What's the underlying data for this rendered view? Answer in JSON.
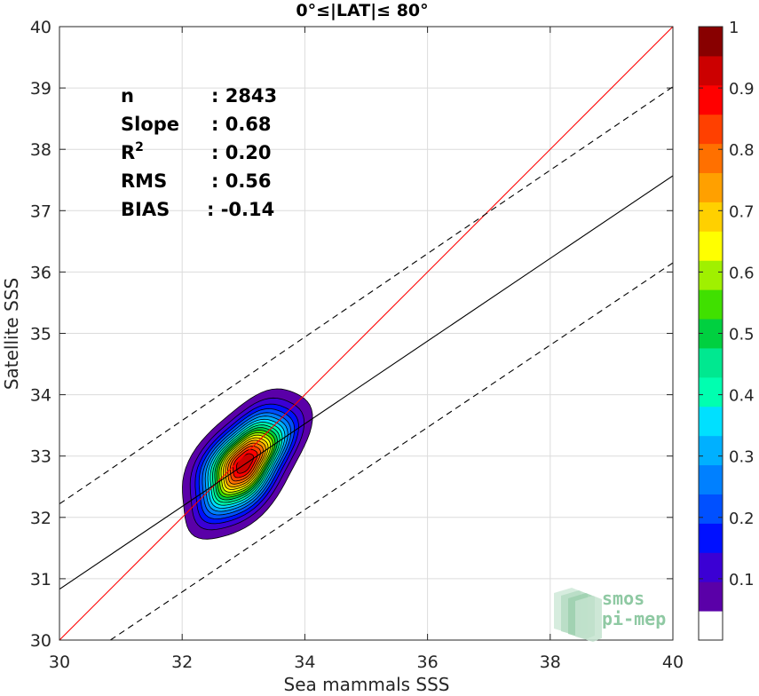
{
  "chart_data": {
    "type": "scatter",
    "title": "0°≤|LAT|≤ 80°",
    "xlabel": "Sea mammals SSS",
    "ylabel": "Satellite SSS",
    "xlim": [
      30,
      40
    ],
    "ylim": [
      30,
      40
    ],
    "xticks": [
      "30",
      "32",
      "34",
      "36",
      "38",
      "40"
    ],
    "yticks": [
      "30",
      "31",
      "32",
      "33",
      "34",
      "35",
      "36",
      "37",
      "38",
      "39",
      "40"
    ],
    "grid": true,
    "stats": [
      {
        "label": "n",
        "value": ": 2843"
      },
      {
        "label": "Slope",
        "value": ": 0.68"
      },
      {
        "label": "R",
        "sup": "2",
        "value": ": 0.20"
      },
      {
        "label": "RMS",
        "value": ": 0.56"
      },
      {
        "label": "BIAS",
        "value": ": -0.14"
      }
    ],
    "lines": [
      {
        "kind": "identity",
        "color": "#ff0000",
        "x": [
          30,
          40
        ],
        "y": [
          30,
          40
        ]
      },
      {
        "kind": "regression",
        "color": "#000000",
        "x": [
          30,
          40
        ],
        "y": [
          30.83,
          37.57
        ]
      },
      {
        "kind": "upper-bound",
        "color": "#000000",
        "dash": true,
        "x": [
          30,
          40
        ],
        "y": [
          32.22,
          39.02
        ]
      },
      {
        "kind": "lower-bound",
        "color": "#000000",
        "dash": true,
        "x": [
          30.83,
          40
        ],
        "y": [
          30,
          36.15
        ]
      }
    ],
    "density": {
      "center": [
        33.02,
        32.88
      ],
      "sigma": [
        0.43,
        0.5
      ],
      "rho": 0.55,
      "levels": [
        0.05,
        0.1,
        0.15,
        0.2,
        0.25,
        0.3,
        0.35,
        0.4,
        0.45,
        0.5,
        0.55,
        0.6,
        0.65,
        0.7,
        0.75,
        0.8,
        0.85,
        0.9,
        0.95
      ]
    },
    "colorbar": {
      "min": 0,
      "max": 1,
      "tick_labels": [
        "0.1",
        "0.2",
        "0.3",
        "0.4",
        "0.5",
        "0.6",
        "0.7",
        "0.8",
        "0.9",
        "1"
      ],
      "tick_values": [
        0.1,
        0.2,
        0.3,
        0.4,
        0.5,
        0.6,
        0.7,
        0.8,
        0.9,
        1.0
      ],
      "colors": [
        "#ffffff",
        "#5a00a8",
        "#3b00d4",
        "#0010ff",
        "#0050ff",
        "#0080ff",
        "#00b0ff",
        "#00e0ff",
        "#00ffb0",
        "#00e890",
        "#00d040",
        "#40e000",
        "#a0f000",
        "#ffff00",
        "#ffd000",
        "#ffa000",
        "#ff7000",
        "#ff4000",
        "#ff0000",
        "#cc0000",
        "#880000"
      ]
    }
  },
  "logo": {
    "line1": "smos",
    "line2": "pi-mep"
  }
}
